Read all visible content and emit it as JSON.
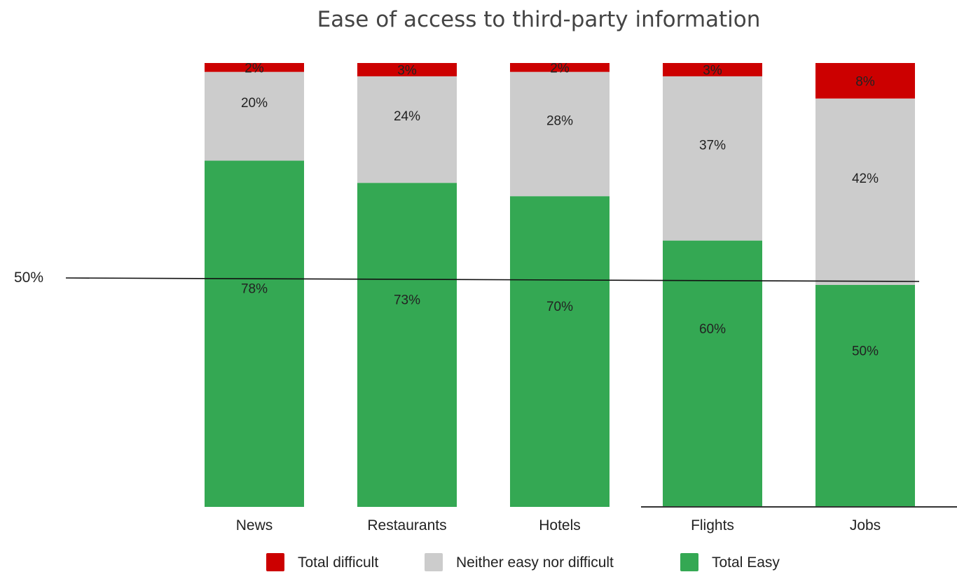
{
  "chart_data": {
    "type": "bar",
    "stacked": true,
    "title": "Ease of access to third-party information",
    "xlabel": "",
    "ylabel": "",
    "categories": [
      "News",
      "Restaurants",
      "Hotels",
      "Flights",
      "Jobs"
    ],
    "series": [
      {
        "name": "Total Easy",
        "values": [
          78,
          73,
          70,
          60,
          50
        ],
        "labels": [
          "78%",
          "73%",
          "70%",
          "60%",
          "50%"
        ],
        "color": "#34a853"
      },
      {
        "name": "Neither easy nor difficult",
        "values": [
          20,
          24,
          28,
          37,
          42
        ],
        "labels": [
          "20%",
          "24%",
          "28%",
          "37%",
          "42%"
        ],
        "color": "#cccccc"
      },
      {
        "name": "Total difficult",
        "values": [
          2,
          3,
          2,
          3,
          8
        ],
        "labels": [
          "2%",
          "3%",
          "2%",
          "3%",
          "8%"
        ],
        "color": "#cc0000"
      }
    ],
    "legend_order": [
      "Total difficult",
      "Neither easy nor difficult",
      "Total Easy"
    ],
    "legend_position": "bottom",
    "ylim": [
      0,
      100
    ],
    "grid": false,
    "reference_line": {
      "value": 50,
      "label": "50%"
    }
  }
}
